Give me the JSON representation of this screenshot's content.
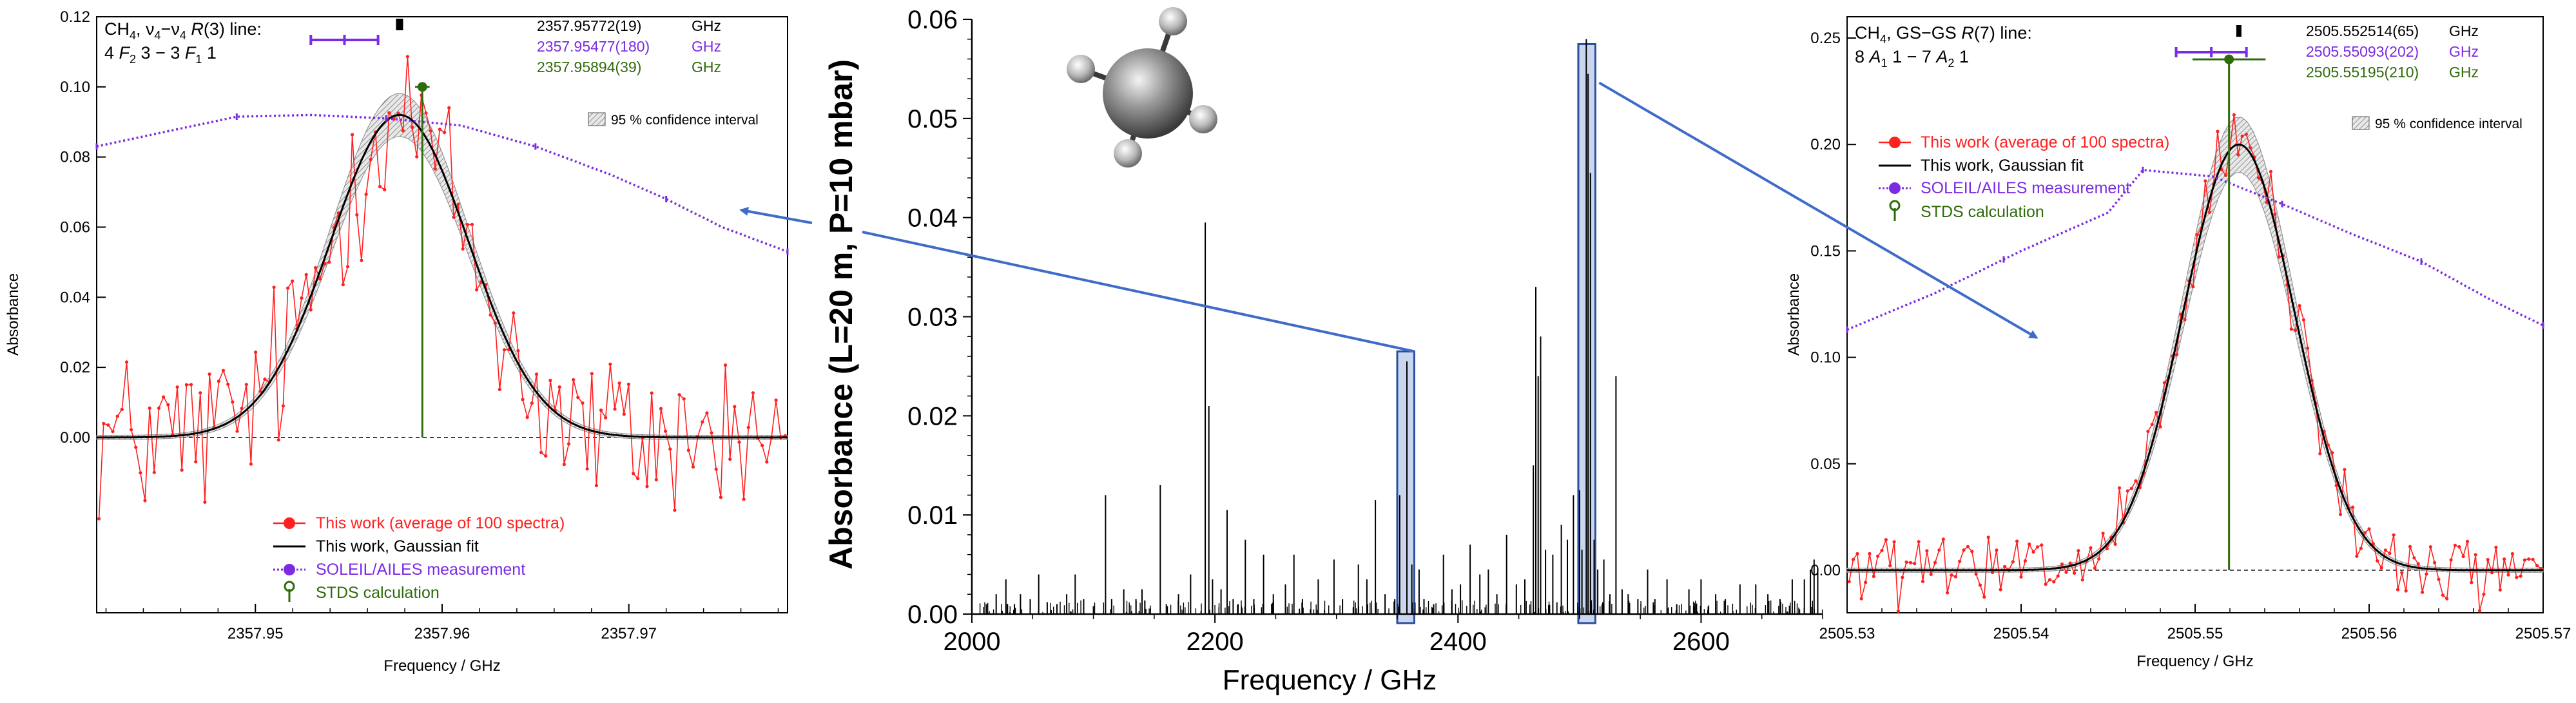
{
  "chart_data": [
    {
      "type": "line",
      "panel": "left",
      "title_lines": {
        "line1": {
          "species": "CH",
          "species_sub": "4",
          "band": ", ν",
          "band_sub1": "4",
          "band_mid": "−ν",
          "band_sub2": "4",
          "branch_pre": " ",
          "branch": "R",
          "branch_post": "(3) line:"
        },
        "line2": {
          "a": "4 ",
          "b": "F",
          "b_sub": "2",
          "c": " 3  −  3 ",
          "d": "F",
          "d_sub": "1",
          "e": " 1"
        }
      },
      "frequencies": [
        {
          "value": "2357.95772(19)",
          "unit": "GHz",
          "color": "#000000"
        },
        {
          "value": "2357.95477(180)",
          "unit": "GHz",
          "color": "#7b2be2"
        },
        {
          "value": "2357.95894(39)",
          "unit": "GHz",
          "color": "#2e6b0a"
        }
      ],
      "confidence_label": "95 % confidence interval",
      "xlabel": "Frequency / GHz",
      "ylabel": "Absorbance",
      "xlim": [
        2357.9415,
        2357.9785
      ],
      "ylim": [
        -0.05,
        0.12
      ],
      "xticks": [
        {
          "v": 2357.95,
          "label": "2357.95"
        },
        {
          "v": 2357.96,
          "label": "2357.96"
        },
        {
          "v": 2357.97,
          "label": "2357.97"
        }
      ],
      "yticks": [
        {
          "v": 0.0,
          "label": "0.00"
        },
        {
          "v": 0.02,
          "label": "0.02"
        },
        {
          "v": 0.04,
          "label": "0.04"
        },
        {
          "v": 0.06,
          "label": "0.06"
        },
        {
          "v": 0.08,
          "label": "0.08"
        },
        {
          "v": 0.1,
          "label": "0.10"
        },
        {
          "v": 0.12,
          "label": "0.12"
        }
      ],
      "gaussian": {
        "amplitude": 0.092,
        "center": 2357.95772,
        "sigma": 0.0037
      },
      "noise_amplitude": 0.018,
      "n_points": 150,
      "soleil_curve": [
        [
          2357.9415,
          0.083
        ],
        [
          2357.945,
          0.087
        ],
        [
          2357.949,
          0.0915
        ],
        [
          2357.953,
          0.092
        ],
        [
          2357.957,
          0.091
        ],
        [
          2357.961,
          0.089
        ],
        [
          2357.965,
          0.083
        ],
        [
          2357.969,
          0.075
        ],
        [
          2357.972,
          0.068
        ],
        [
          2357.975,
          0.06
        ],
        [
          2357.9785,
          0.053
        ]
      ],
      "soleil_markers": [
        2357.9415,
        2357.949,
        2357.957,
        2357.965,
        2357.972,
        2357.9785
      ],
      "measured_center": 2357.95772,
      "measured_err": 0.00019,
      "soleil_center": 2357.95477,
      "soleil_err": 0.0018,
      "stds_center": 2357.95894,
      "stds_peak": 0.1,
      "stds_err": 0.00039,
      "legend": [
        {
          "label": "This work (average of 100 spectra)",
          "color": "#ff2020",
          "style": "marker-line"
        },
        {
          "label": "This work, Gaussian fit",
          "color": "#000000",
          "style": "line"
        },
        {
          "label": "SOLEIL/AILES measurement",
          "color": "#7b2be2",
          "style": "dotted-marker"
        },
        {
          "label": "STDS calculation",
          "color": "#2e6b0a",
          "style": "stick"
        }
      ]
    },
    {
      "type": "bar",
      "panel": "center",
      "xlabel": "Frequency / GHz",
      "ylabel": "Absorbance (L=20 m, P=10 mbar)",
      "xlim": [
        2000,
        2700
      ],
      "ylim": [
        0,
        0.06
      ],
      "xticks": [
        {
          "v": 2000,
          "label": "2000"
        },
        {
          "v": 2200,
          "label": "2200"
        },
        {
          "v": 2400,
          "label": "2400"
        },
        {
          "v": 2600,
          "label": "2600"
        }
      ],
      "yticks": [
        {
          "v": 0.0,
          "label": "0.00"
        },
        {
          "v": 0.01,
          "label": "0.01"
        },
        {
          "v": 0.02,
          "label": "0.02"
        },
        {
          "v": 0.03,
          "label": "0.03"
        },
        {
          "v": 0.04,
          "label": "0.04"
        },
        {
          "v": 0.05,
          "label": "0.05"
        },
        {
          "v": 0.06,
          "label": "0.06"
        }
      ],
      "lines": [
        [
          2012,
          0.001
        ],
        [
          2020,
          0.002
        ],
        [
          2028,
          0.0035
        ],
        [
          2035,
          0.001
        ],
        [
          2040,
          0.002
        ],
        [
          2048,
          0.0015
        ],
        [
          2055,
          0.004
        ],
        [
          2062,
          0.0012
        ],
        [
          2070,
          0.001
        ],
        [
          2078,
          0.002
        ],
        [
          2085,
          0.004
        ],
        [
          2092,
          0.0015
        ],
        [
          2100,
          0.0008
        ],
        [
          2110,
          0.012
        ],
        [
          2115,
          0.0015
        ],
        [
          2125,
          0.0025
        ],
        [
          2135,
          0.0015
        ],
        [
          2140,
          0.0025
        ],
        [
          2155,
          0.013
        ],
        [
          2160,
          0.001
        ],
        [
          2170,
          0.002
        ],
        [
          2180,
          0.004
        ],
        [
          2192,
          0.0395
        ],
        [
          2195,
          0.021
        ],
        [
          2198,
          0.0035
        ],
        [
          2205,
          0.0025
        ],
        [
          2210,
          0.0105
        ],
        [
          2215,
          0.0015
        ],
        [
          2225,
          0.0075
        ],
        [
          2232,
          0.0015
        ],
        [
          2240,
          0.006
        ],
        [
          2248,
          0.002
        ],
        [
          2258,
          0.003
        ],
        [
          2265,
          0.006
        ],
        [
          2272,
          0.0015
        ],
        [
          2285,
          0.0035
        ],
        [
          2298,
          0.0055
        ],
        [
          2305,
          0.0015
        ],
        [
          2318,
          0.005
        ],
        [
          2325,
          0.0035
        ],
        [
          2332,
          0.0115
        ],
        [
          2340,
          0.002
        ],
        [
          2348,
          0.0015
        ],
        [
          2352,
          0.012
        ],
        [
          2357.96,
          0.0255
        ],
        [
          2362,
          0.005
        ],
        [
          2368,
          0.0045
        ],
        [
          2372,
          0.0015
        ],
        [
          2380,
          0.001
        ],
        [
          2388,
          0.006
        ],
        [
          2395,
          0.0025
        ],
        [
          2402,
          0.003
        ],
        [
          2410,
          0.007
        ],
        [
          2418,
          0.004
        ],
        [
          2425,
          0.0045
        ],
        [
          2432,
          0.002
        ],
        [
          2440,
          0.008
        ],
        [
          2448,
          0.003
        ],
        [
          2455,
          0.0035
        ],
        [
          2462,
          0.015
        ],
        [
          2464,
          0.033
        ],
        [
          2466,
          0.024
        ],
        [
          2468,
          0.028
        ],
        [
          2472,
          0.0065
        ],
        [
          2478,
          0.006
        ],
        [
          2485,
          0.009
        ],
        [
          2490,
          0.0075
        ],
        [
          2495,
          0.012
        ],
        [
          2500,
          0.0125
        ],
        [
          2502,
          0.0065
        ],
        [
          2505.55,
          0.058
        ],
        [
          2507,
          0.0545
        ],
        [
          2509,
          0.0445
        ],
        [
          2512,
          0.0075
        ],
        [
          2515,
          0.0045
        ],
        [
          2520,
          0.0055
        ],
        [
          2525,
          0.002
        ],
        [
          2530,
          0.024
        ],
        [
          2535,
          0.0025
        ],
        [
          2540,
          0.002
        ],
        [
          2548,
          0.0015
        ],
        [
          2556,
          0.0045
        ],
        [
          2562,
          0.0015
        ],
        [
          2572,
          0.0035
        ],
        [
          2580,
          0.001
        ],
        [
          2590,
          0.0025
        ],
        [
          2600,
          0.0035
        ],
        [
          2612,
          0.002
        ],
        [
          2620,
          0.0015
        ],
        [
          2632,
          0.003
        ],
        [
          2645,
          0.003
        ],
        [
          2655,
          0.002
        ],
        [
          2665,
          0.0015
        ],
        [
          2675,
          0.0035
        ],
        [
          2685,
          0.0035
        ],
        [
          2690,
          0.0045
        ],
        [
          2693,
          0.0055
        ],
        [
          2696,
          0.0045
        ]
      ],
      "highlight_windows": [
        {
          "x1": 2350,
          "x2": 2364,
          "ymax": 0.0265
        },
        {
          "x1": 2499,
          "x2": 2513,
          "ymax": 0.0575
        }
      ]
    },
    {
      "type": "line",
      "panel": "right",
      "title_lines": {
        "line1": {
          "species": "CH",
          "species_sub": "4",
          "band": ", GS−GS ",
          "branch": "R",
          "branch_post": "(7) line:"
        },
        "line2": {
          "a": "8 ",
          "b": "A",
          "b_sub": "1",
          "c": " 1  −  7 ",
          "d": "A",
          "d_sub": "2",
          "e": " 1"
        }
      },
      "frequencies": [
        {
          "value": "2505.552514(65)",
          "unit": "GHz",
          "color": "#000000"
        },
        {
          "value": "2505.55093(202)",
          "unit": "GHz",
          "color": "#7b2be2"
        },
        {
          "value": "2505.55195(210)",
          "unit": "GHz",
          "color": "#2e6b0a"
        }
      ],
      "confidence_label": "95 % confidence interval",
      "xlabel": "Frequency / GHz",
      "ylabel": "Absorbance",
      "xlim": [
        2505.53,
        2505.57
      ],
      "ylim": [
        -0.02,
        0.26
      ],
      "xticks": [
        {
          "v": 2505.53,
          "label": "2505.53"
        },
        {
          "v": 2505.54,
          "label": "2505.54"
        },
        {
          "v": 2505.55,
          "label": "2505.55"
        },
        {
          "v": 2505.56,
          "label": "2505.56"
        },
        {
          "v": 2505.57,
          "label": "2505.57"
        }
      ],
      "yticks": [
        {
          "v": 0.0,
          "label": "0.00"
        },
        {
          "v": 0.05,
          "label": "0.05"
        },
        {
          "v": 0.1,
          "label": "0.10"
        },
        {
          "v": 0.15,
          "label": "0.15"
        },
        {
          "v": 0.2,
          "label": "0.20"
        },
        {
          "v": 0.25,
          "label": "0.25"
        }
      ],
      "gaussian": {
        "amplitude": 0.2,
        "center": 2505.552514,
        "sigma": 0.0032
      },
      "noise_amplitude": 0.012,
      "n_points": 170,
      "soleil_curve": [
        [
          2505.53,
          0.113
        ],
        [
          2505.535,
          0.13
        ],
        [
          2505.54,
          0.15
        ],
        [
          2505.545,
          0.168
        ],
        [
          2505.547,
          0.188
        ],
        [
          2505.551,
          0.185
        ],
        [
          2505.555,
          0.172
        ],
        [
          2505.559,
          0.158
        ],
        [
          2505.563,
          0.145
        ],
        [
          2505.567,
          0.127
        ],
        [
          2505.57,
          0.115
        ]
      ],
      "soleil_markers": [
        2505.53,
        2505.539,
        2505.547,
        2505.555,
        2505.563,
        2505.57
      ],
      "measured_center": 2505.552514,
      "measured_err": 6.5e-05,
      "soleil_center": 2505.55093,
      "soleil_err": 0.00202,
      "stds_center": 2505.55195,
      "stds_peak": 0.24,
      "stds_err": 0.0021,
      "legend": [
        {
          "label": "This work (average of 100 spectra)",
          "color": "#ff2020",
          "style": "marker-line"
        },
        {
          "label": "This work, Gaussian fit",
          "color": "#000000",
          "style": "line"
        },
        {
          "label": "SOLEIL/AILES measurement",
          "color": "#7b2be2",
          "style": "dotted-marker"
        },
        {
          "label": "STDS calculation",
          "color": "#2e6b0a",
          "style": "stick"
        }
      ]
    }
  ],
  "molecule_icon": "methane-ball-and-stick-icon",
  "colors": {
    "data": "#ff2020",
    "fit": "#000000",
    "soleil": "#7b2be2",
    "stds": "#2e6b0a",
    "connector": "#3f6cc9",
    "window_fill": "#c9d6ee",
    "window_stroke": "#2a4f9e"
  }
}
